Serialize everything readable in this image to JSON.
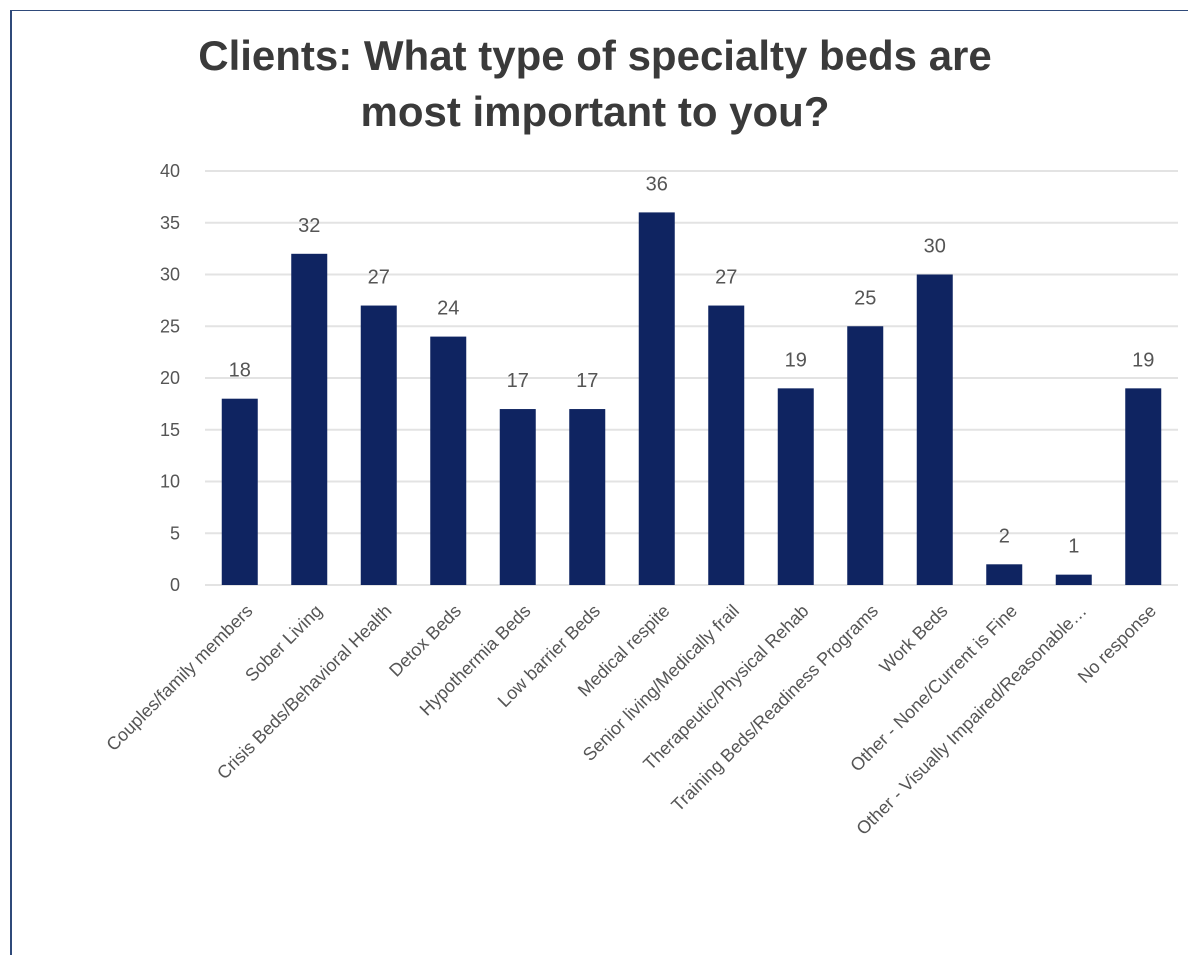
{
  "chart_data": {
    "type": "bar",
    "title_lines": [
      "Clients: What type of specialty beds are",
      "most important to you?"
    ],
    "categories": [
      "Couples/family members",
      "Sober Living",
      "Crisis Beds/Behavioral Health",
      "Detox Beds",
      "Hypothermia Beds",
      "Low barrier Beds",
      "Medical respite",
      "Senior living/Medically frail",
      "Therapeutic/Physical Rehab",
      "Training Beds/Readiness Programs",
      "Work Beds",
      "Other - None/Current is Fine",
      "Other - Visually Impaired/Reasonable…",
      "No response"
    ],
    "values": [
      18,
      32,
      27,
      24,
      17,
      17,
      36,
      27,
      19,
      25,
      30,
      2,
      1,
      19
    ],
    "ylim": [
      0,
      40
    ],
    "yticks": [
      0,
      5,
      10,
      15,
      20,
      25,
      30,
      35,
      40
    ],
    "grid": true,
    "data_labels": true,
    "colors": {
      "bar": "#0f2461",
      "grid": "#e3e3e3",
      "text": "#555555",
      "title": "#3a3a3a"
    }
  }
}
